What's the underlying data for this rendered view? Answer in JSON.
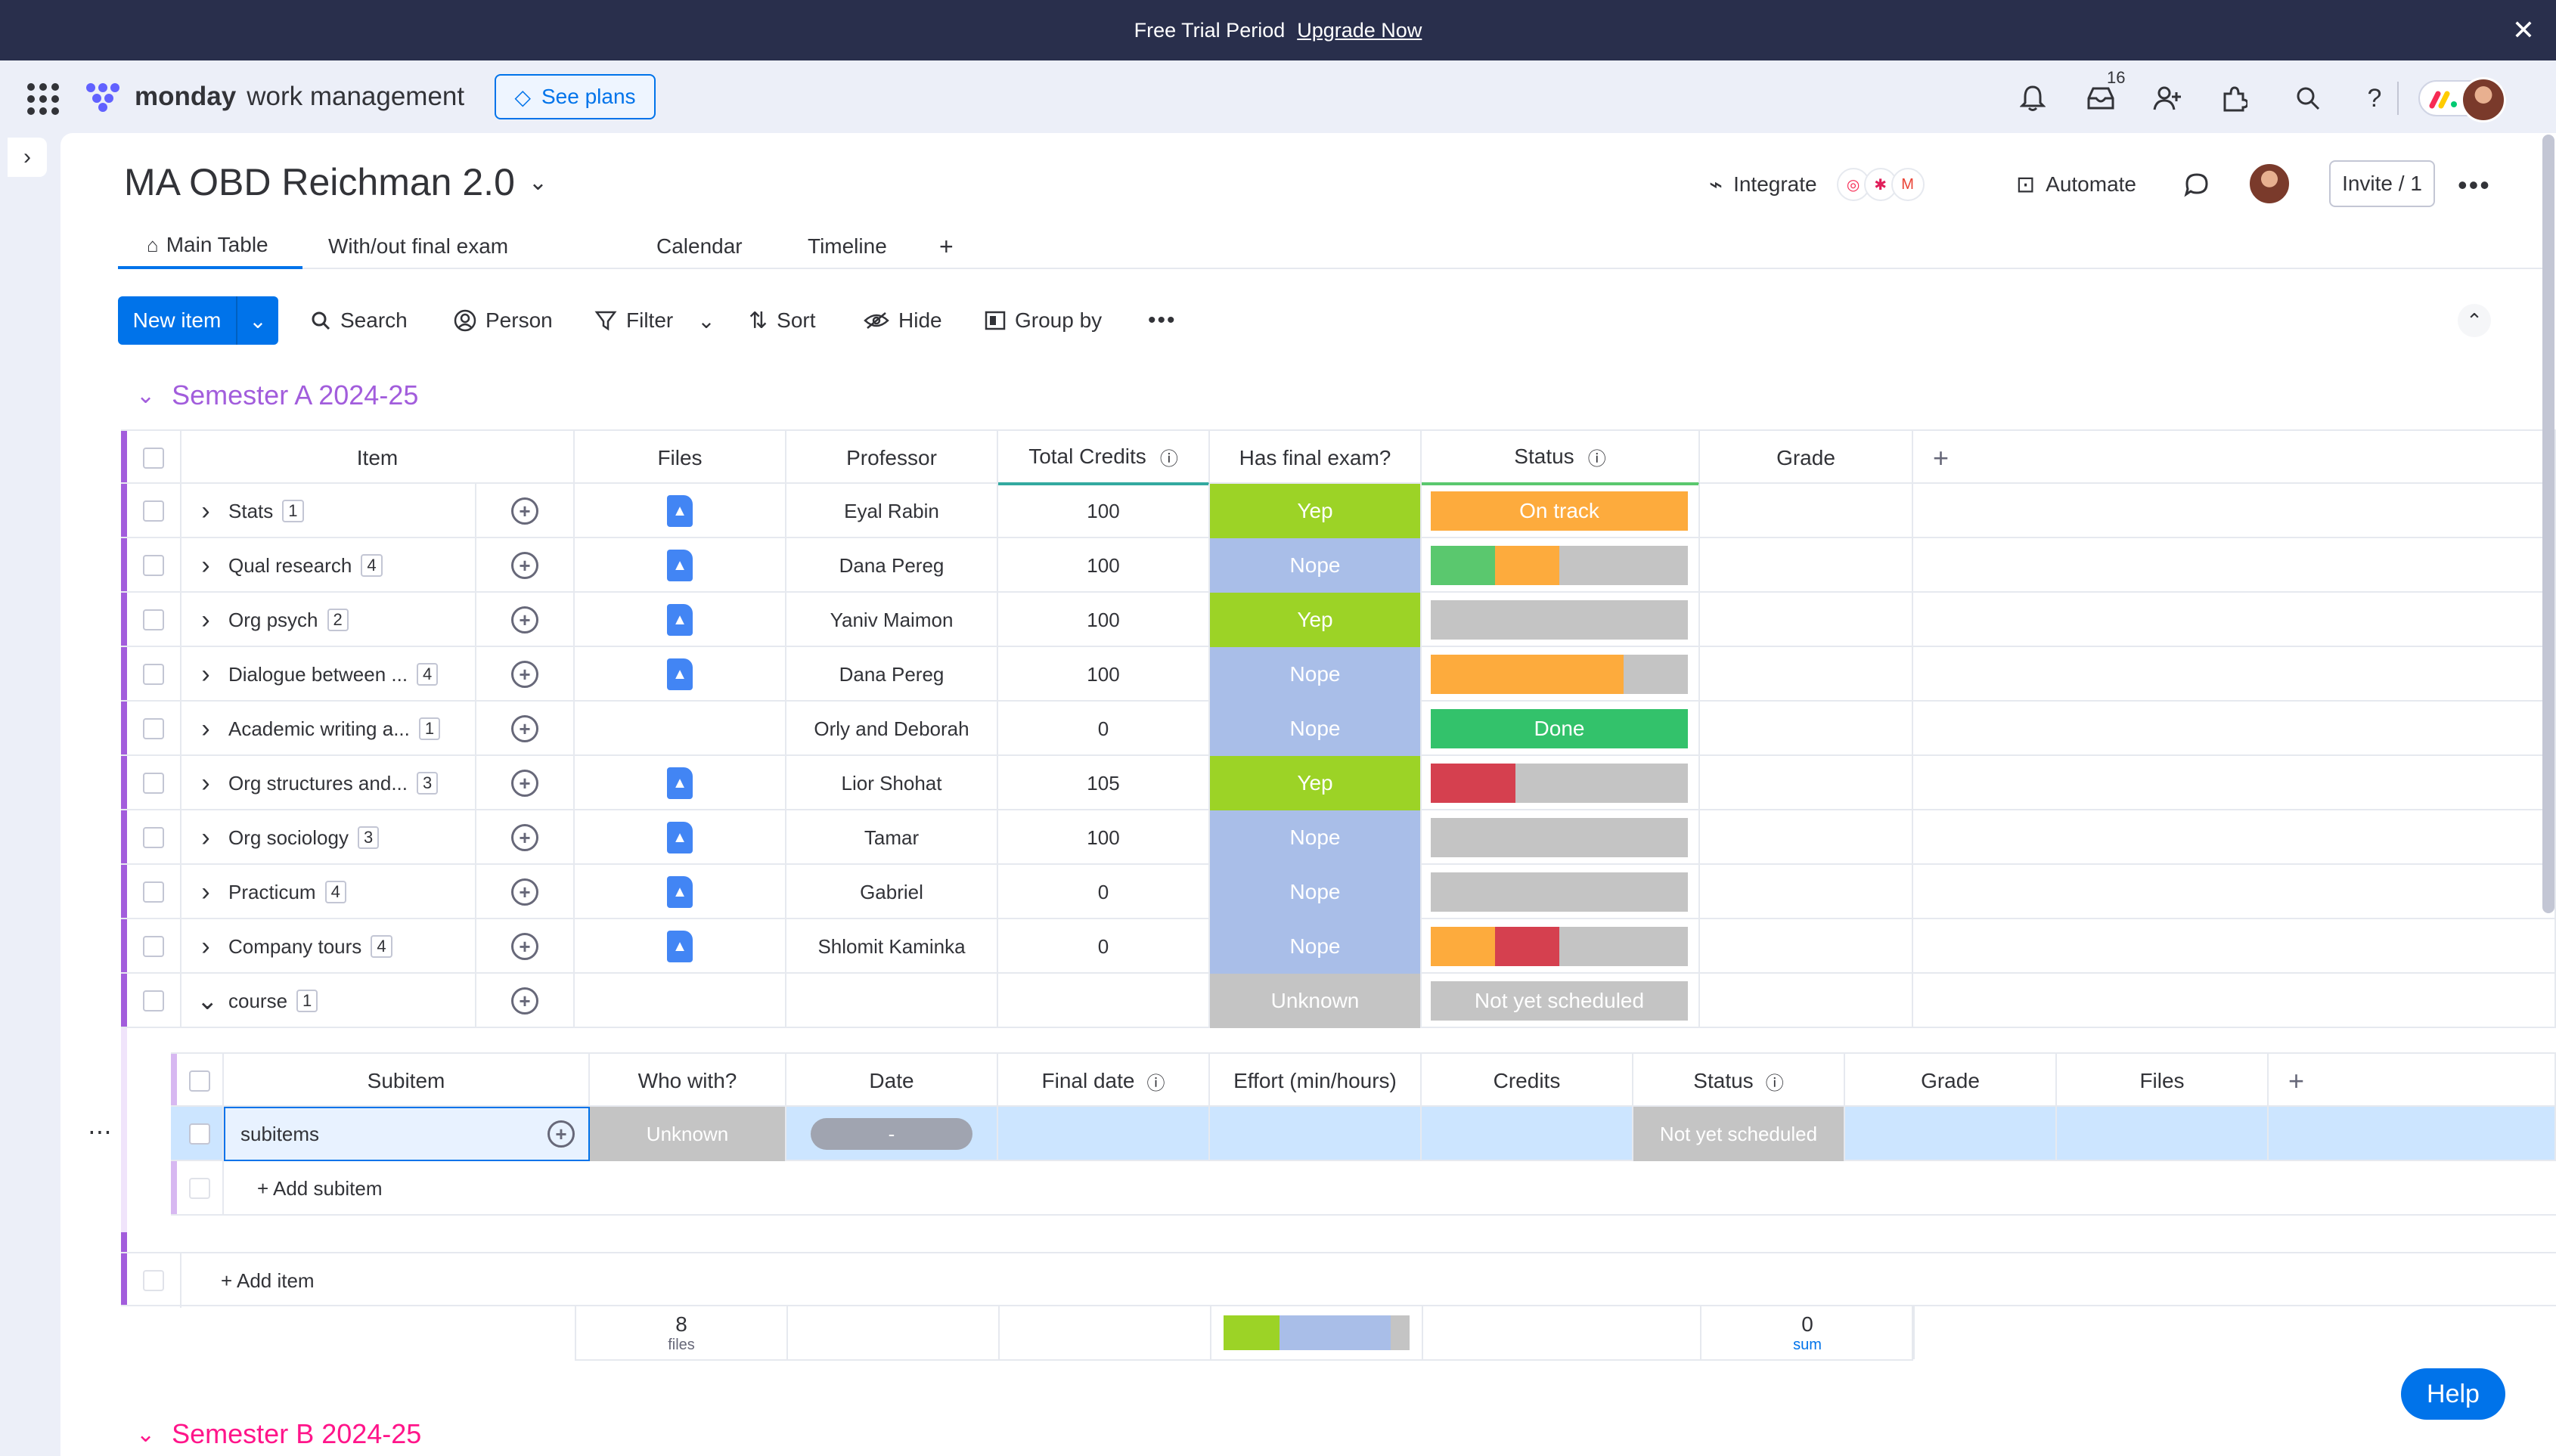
{
  "banner": {
    "text": "Free Trial Period",
    "link": "Upgrade Now"
  },
  "brand": {
    "name": "monday",
    "product": "work management",
    "see_plans": "See plans"
  },
  "notifications": {
    "inbox_count": "16"
  },
  "board": {
    "title": "MA OBD Reichman 2.0",
    "integrate": "Integrate",
    "automate": "Automate",
    "invite": "Invite / 1",
    "tabs": [
      {
        "label": "Main Table"
      },
      {
        "label": "With/out final exam"
      },
      {
        "label": "Calendar"
      },
      {
        "label": "Timeline"
      }
    ]
  },
  "toolbar": {
    "new_item": "New item",
    "search": "Search",
    "person": "Person",
    "filter": "Filter",
    "sort": "Sort",
    "hide": "Hide",
    "group_by": "Group by"
  },
  "colors": {
    "accent": "#0073ea",
    "group_a": "#a25ddc",
    "group_b": "#ff158a",
    "yep": "#9cd326",
    "nope": "#a9bee8",
    "unknown": "#c4c4c4",
    "on_track": "#fdab3d",
    "done": "#00c875",
    "stuck": "#e2445c",
    "gray": "#c4c4c4"
  },
  "group_a": {
    "title": "Semester A 2024-25",
    "columns": {
      "item": "Item",
      "files": "Files",
      "professor": "Professor",
      "total_credits": "Total Credits",
      "has_final": "Has final exam?",
      "status": "Status",
      "grade": "Grade"
    },
    "rows": [
      {
        "item": "Stats",
        "count": "1",
        "file": true,
        "professor": "Eyal Rabin",
        "credits": "100",
        "final": "Yep",
        "status_text": "On track",
        "status_segments": [
          {
            "color": "#fdab3d",
            "pct": 100
          }
        ]
      },
      {
        "item": "Qual research",
        "count": "4",
        "file": true,
        "professor": "Dana Pereg",
        "credits": "100",
        "final": "Nope",
        "status_text": "",
        "status_segments": [
          {
            "color": "#5ac86e",
            "pct": 25
          },
          {
            "color": "#fdab3d",
            "pct": 25
          }
        ]
      },
      {
        "item": "Org psych",
        "count": "2",
        "file": true,
        "professor": "Yaniv Maimon",
        "credits": "100",
        "final": "Yep",
        "status_text": "",
        "status_segments": []
      },
      {
        "item": "Dialogue between ...",
        "count": "4",
        "file": true,
        "professor": "Dana Pereg",
        "credits": "100",
        "final": "Nope",
        "status_text": "",
        "status_segments": [
          {
            "color": "#fdab3d",
            "pct": 75
          }
        ]
      },
      {
        "item": "Academic writing a...",
        "count": "1",
        "file": false,
        "professor": "Orly and Deborah",
        "credits": "0",
        "final": "Nope",
        "status_text": "Done",
        "status_segments": [
          {
            "color": "#33c26b",
            "pct": 100
          }
        ]
      },
      {
        "item": "Org structures and...",
        "count": "3",
        "file": true,
        "professor": "Lior Shohat",
        "credits": "105",
        "final": "Yep",
        "status_text": "",
        "status_segments": [
          {
            "color": "#d5404f",
            "pct": 33
          }
        ]
      },
      {
        "item": "Org sociology",
        "count": "3",
        "file": true,
        "professor": "Tamar",
        "credits": "100",
        "final": "Nope",
        "status_text": "",
        "status_segments": []
      },
      {
        "item": "Practicum",
        "count": "4",
        "file": true,
        "professor": "Gabriel",
        "credits": "0",
        "final": "Nope",
        "status_text": "",
        "status_segments": []
      },
      {
        "item": "Company tours",
        "count": "4",
        "file": true,
        "professor": "Shlomit Kaminka",
        "credits": "0",
        "final": "Nope",
        "status_text": "",
        "status_segments": [
          {
            "color": "#fdab3d",
            "pct": 25
          },
          {
            "color": "#d5404f",
            "pct": 25
          }
        ]
      },
      {
        "item": "course",
        "count": "1",
        "file": false,
        "professor": "",
        "credits": "",
        "final": "Unknown",
        "status_text": "Not yet scheduled",
        "status_segments": [
          {
            "color": "#c4c4c4",
            "pct": 100
          }
        ]
      }
    ],
    "subitems": {
      "columns": {
        "subitem": "Subitem",
        "who_with": "Who with?",
        "date": "Date",
        "final_date": "Final date",
        "effort": "Effort (min/hours)",
        "credits": "Credits",
        "status": "Status",
        "grade": "Grade",
        "files": "Files"
      },
      "rows": [
        {
          "name": "subitems",
          "who_with": "Unknown",
          "date": "-",
          "status": "Not yet scheduled"
        }
      ],
      "add": "+ Add subitem"
    },
    "add_item": "+ Add item",
    "summary": {
      "files_count": "8",
      "files_label": "files",
      "grade_sum": "0",
      "grade_label": "sum",
      "final_distribution": [
        {
          "color": "#9cd326",
          "pct": 30
        },
        {
          "color": "#a9bee8",
          "pct": 60
        },
        {
          "color": "#c4c4c4",
          "pct": 10
        }
      ]
    }
  },
  "group_b": {
    "title": "Semester B 2024-25"
  },
  "help": "Help"
}
